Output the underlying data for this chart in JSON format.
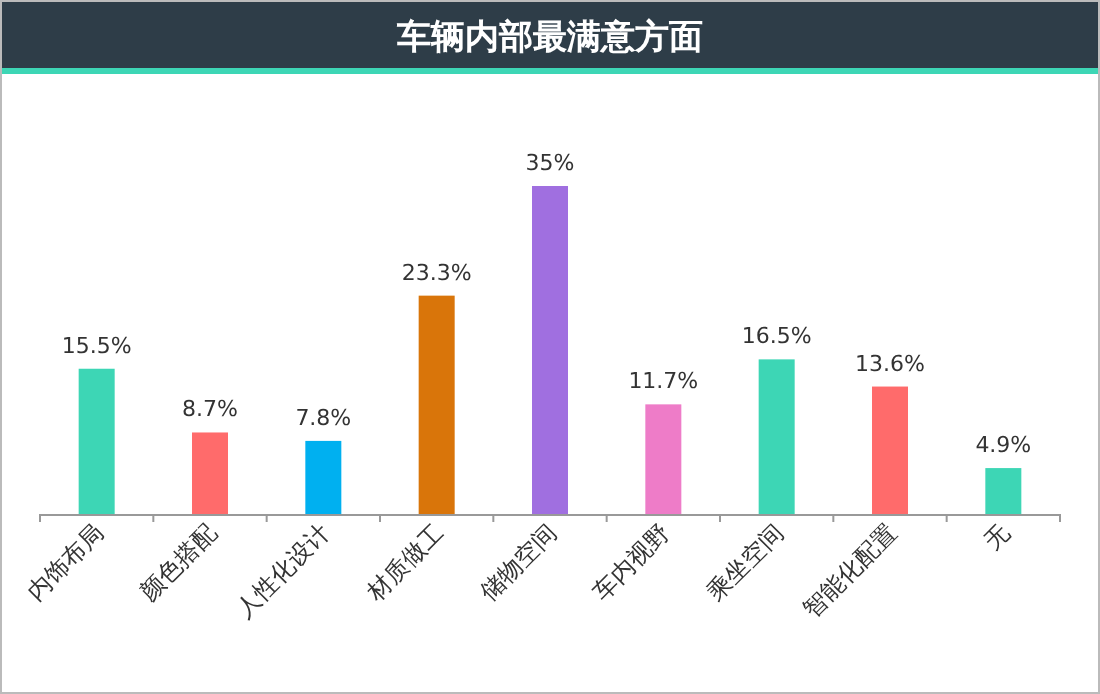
{
  "chart_data": {
    "type": "bar",
    "title": "车辆内部最满意方面",
    "categories": [
      "内饰布局",
      "颜色搭配",
      "人性化设计",
      "材质做工",
      "储物空间",
      "车内视野",
      "乘坐空间",
      "智能化配置",
      "无"
    ],
    "values": [
      15.5,
      8.7,
      7.8,
      23.3,
      35,
      11.7,
      16.5,
      13.6,
      4.9
    ],
    "value_labels": [
      "15.5%",
      "8.7%",
      "7.8%",
      "23.3%",
      "35%",
      "11.7%",
      "16.5%",
      "13.6%",
      "4.9%"
    ],
    "colors": [
      "#3dd6b5",
      "#ff6b6b",
      "#00b0f0",
      "#d9750a",
      "#a06fe0",
      "#ee7cc8",
      "#3dd6b5",
      "#ff6b6b",
      "#3dd6b5"
    ]
  }
}
